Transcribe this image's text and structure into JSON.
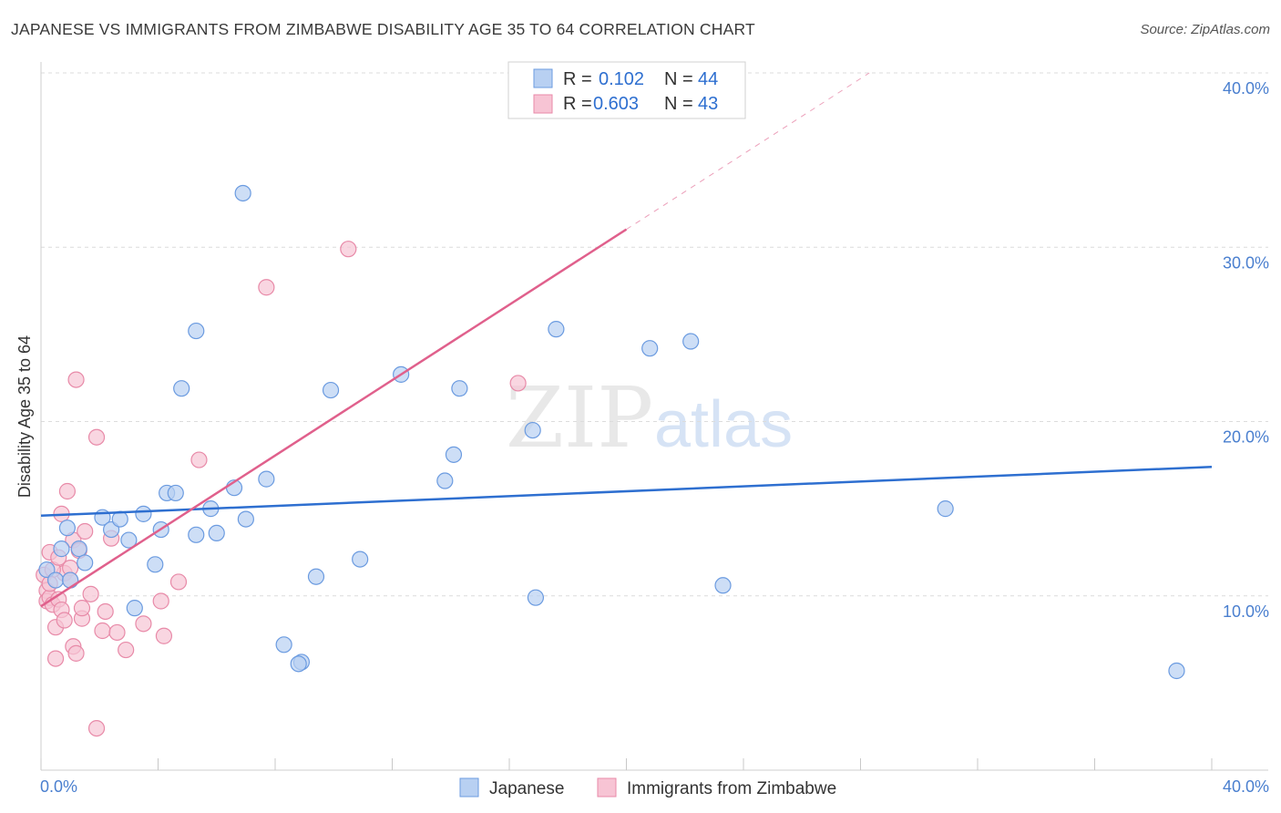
{
  "title": "JAPANESE VS IMMIGRANTS FROM ZIMBABWE DISABILITY AGE 35 TO 64 CORRELATION CHART",
  "source": "Source: ZipAtlas.com",
  "watermark": {
    "zip": "ZIP",
    "atlas": "atlas"
  },
  "colors": {
    "japanese_fill": "#b8d0f2",
    "japanese_stroke": "#6b9be0",
    "japanese_line": "#2e6fd0",
    "zimbabwe_fill": "#f7c4d4",
    "zimbabwe_stroke": "#e88aa8",
    "zimbabwe_line": "#e0608c",
    "value_text": "#2e6fd0",
    "grid": "#dcdcdc"
  },
  "legend": {
    "rows": [
      {
        "r_label": "R =",
        "r_value": "0.102",
        "n_label": "N =",
        "n_value": "44"
      },
      {
        "r_label": "R =",
        "r_value": "0.603",
        "n_label": "N =",
        "n_value": "43"
      }
    ]
  },
  "chart_data": {
    "type": "scatter",
    "title": "JAPANESE VS IMMIGRANTS FROM ZIMBABWE DISABILITY AGE 35 TO 64 CORRELATION CHART",
    "xlabel": "",
    "ylabel": "Disability Age 35 to 64",
    "xlim": [
      0,
      40
    ],
    "ylim": [
      0,
      40
    ],
    "x_tick_labels": [
      "0.0%",
      "40.0%"
    ],
    "y_ticks": [
      10,
      20,
      30,
      40
    ],
    "y_tick_labels": [
      "10.0%",
      "20.0%",
      "30.0%",
      "40.0%"
    ],
    "grid": true,
    "series": [
      {
        "name": "Japanese",
        "R": 0.102,
        "N": 44,
        "trend": {
          "x0": 0,
          "y0": 14.6,
          "x1": 40,
          "y1": 17.4,
          "solid_until": 40
        },
        "points": [
          [
            0.2,
            11.5
          ],
          [
            0.5,
            10.9
          ],
          [
            0.7,
            12.7
          ],
          [
            0.9,
            13.9
          ],
          [
            1.0,
            10.9
          ],
          [
            1.3,
            12.7
          ],
          [
            1.5,
            11.9
          ],
          [
            2.1,
            14.5
          ],
          [
            2.4,
            13.8
          ],
          [
            2.7,
            14.4
          ],
          [
            3.0,
            13.2
          ],
          [
            3.2,
            9.3
          ],
          [
            3.5,
            14.7
          ],
          [
            3.9,
            11.8
          ],
          [
            4.1,
            13.8
          ],
          [
            4.3,
            15.9
          ],
          [
            4.6,
            15.9
          ],
          [
            4.8,
            21.9
          ],
          [
            5.3,
            25.2
          ],
          [
            5.3,
            13.5
          ],
          [
            5.8,
            15.0
          ],
          [
            6.0,
            13.6
          ],
          [
            6.6,
            16.2
          ],
          [
            6.9,
            33.1
          ],
          [
            7.0,
            14.4
          ],
          [
            7.7,
            16.7
          ],
          [
            8.3,
            7.2
          ],
          [
            8.9,
            6.2
          ],
          [
            8.8,
            6.1
          ],
          [
            9.4,
            11.1
          ],
          [
            9.9,
            21.8
          ],
          [
            10.9,
            12.1
          ],
          [
            12.3,
            22.7
          ],
          [
            13.8,
            16.6
          ],
          [
            14.1,
            18.1
          ],
          [
            14.3,
            21.9
          ],
          [
            16.8,
            19.5
          ],
          [
            16.9,
            9.9
          ],
          [
            17.6,
            25.3
          ],
          [
            20.8,
            24.2
          ],
          [
            22.2,
            24.6
          ],
          [
            23.3,
            10.6
          ],
          [
            30.9,
            15.0
          ],
          [
            38.8,
            5.7
          ]
        ]
      },
      {
        "name": "Immigrants from Zimbabwe",
        "R": 0.603,
        "N": 43,
        "trend": {
          "x0": 0,
          "y0": 9.4,
          "x1": 28.3,
          "y1": 40,
          "solid_until": 20.0
        },
        "points": [
          [
            0.1,
            11.2
          ],
          [
            0.2,
            10.3
          ],
          [
            0.2,
            9.7
          ],
          [
            0.3,
            12.5
          ],
          [
            0.3,
            9.9
          ],
          [
            0.4,
            9.5
          ],
          [
            0.5,
            8.2
          ],
          [
            0.5,
            6.4
          ],
          [
            0.6,
            9.8
          ],
          [
            0.7,
            9.2
          ],
          [
            0.7,
            14.7
          ],
          [
            0.8,
            11.3
          ],
          [
            0.8,
            8.6
          ],
          [
            0.9,
            16.0
          ],
          [
            1.0,
            11.6
          ],
          [
            1.0,
            10.9
          ],
          [
            1.1,
            13.2
          ],
          [
            1.1,
            7.1
          ],
          [
            1.2,
            6.7
          ],
          [
            1.2,
            22.4
          ],
          [
            1.3,
            12.6
          ],
          [
            1.4,
            8.7
          ],
          [
            1.4,
            9.3
          ],
          [
            1.5,
            13.7
          ],
          [
            1.7,
            10.1
          ],
          [
            1.9,
            19.1
          ],
          [
            1.9,
            2.4
          ],
          [
            2.1,
            8.0
          ],
          [
            2.2,
            9.1
          ],
          [
            2.4,
            13.3
          ],
          [
            2.6,
            7.9
          ],
          [
            2.9,
            6.9
          ],
          [
            3.5,
            8.4
          ],
          [
            4.1,
            9.7
          ],
          [
            4.2,
            7.7
          ],
          [
            4.7,
            10.8
          ],
          [
            5.4,
            17.8
          ],
          [
            7.7,
            27.7
          ],
          [
            10.5,
            29.9
          ],
          [
            16.3,
            22.2
          ],
          [
            0.4,
            11.5
          ],
          [
            0.3,
            10.7
          ],
          [
            0.6,
            12.2
          ]
        ]
      }
    ],
    "legend_entries": [
      "Japanese",
      "Immigrants from Zimbabwe"
    ]
  }
}
